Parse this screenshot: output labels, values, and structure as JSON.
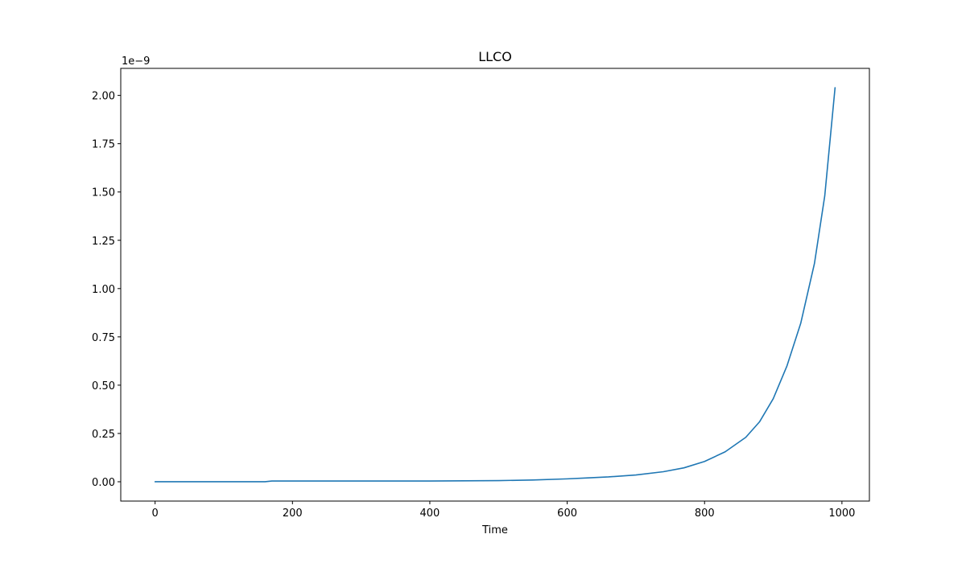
{
  "chart_data": {
    "type": "line",
    "title": "LLCO",
    "xlabel": "Time",
    "ylabel": "",
    "y_offset_label": "1e−9",
    "xlim": [
      -50,
      1040
    ],
    "ylim": [
      -0.1,
      2.14
    ],
    "xticks": [
      0,
      200,
      400,
      600,
      800,
      1000
    ],
    "xtick_labels": [
      "0",
      "200",
      "400",
      "600",
      "800",
      "1000"
    ],
    "yticks": [
      0.0,
      0.25,
      0.5,
      0.75,
      1.0,
      1.25,
      1.5,
      1.75,
      2.0
    ],
    "ytick_labels": [
      "0.00",
      "0.25",
      "0.50",
      "0.75",
      "1.00",
      "1.25",
      "1.50",
      "1.75",
      "2.00"
    ],
    "grid": false,
    "colors": {
      "line": "#1f77b4",
      "axes": "#000000",
      "background": "#ffffff"
    },
    "series": [
      {
        "x": [
          0,
          50,
          100,
          160,
          170,
          200,
          300,
          400,
          450,
          500,
          550,
          600,
          630,
          660,
          700,
          740,
          770,
          800,
          830,
          860,
          880,
          900,
          920,
          940,
          960,
          975,
          990
        ],
        "values": [
          0.0,
          0.0,
          0.0,
          0.0,
          0.004,
          0.004,
          0.004,
          0.004,
          0.005,
          0.006,
          0.009,
          0.015,
          0.02,
          0.025,
          0.035,
          0.052,
          0.072,
          0.105,
          0.155,
          0.23,
          0.31,
          0.43,
          0.6,
          0.82,
          1.13,
          1.48,
          2.04
        ]
      }
    ]
  }
}
